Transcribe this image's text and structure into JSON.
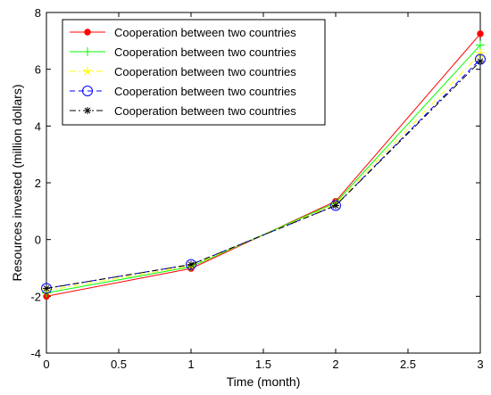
{
  "chart_data": {
    "type": "line",
    "title": "",
    "xlabel": "Time (month)",
    "ylabel": "Resources invested (million dollars)",
    "xlim": [
      0,
      3
    ],
    "ylim": [
      -4,
      8
    ],
    "xticks": [
      0,
      0.5,
      1,
      1.5,
      2,
      2.5,
      3
    ],
    "xtick_labels": [
      "0",
      "0.5",
      "1",
      "1.5",
      "2",
      "2.5",
      "3"
    ],
    "yticks": [
      -4,
      -2,
      0,
      2,
      4,
      6,
      8
    ],
    "ytick_labels": [
      "-4",
      "-2",
      "0",
      "2",
      "4",
      "6",
      "8"
    ],
    "grid": false,
    "legend_position": "top-left",
    "x": [
      0,
      1,
      2,
      3
    ],
    "series": [
      {
        "name": "Cooperation between two countries",
        "values": [
          -2.0,
          -1.02,
          1.35,
          7.25
        ],
        "color": "#ff0000",
        "dash": "solid",
        "marker": "dot"
      },
      {
        "name": "Cooperation between two countries",
        "values": [
          -1.88,
          -0.96,
          1.3,
          6.85
        ],
        "color": "#00ff00",
        "dash": "solid",
        "marker": "plus"
      },
      {
        "name": "Cooperation between two countries",
        "values": [
          -1.8,
          -0.92,
          1.25,
          6.55
        ],
        "color": "#ffff00",
        "dash": "dashdot",
        "marker": "star"
      },
      {
        "name": "Cooperation between two countries",
        "values": [
          -1.72,
          -0.88,
          1.2,
          6.35
        ],
        "color": "#0000ff",
        "dash": "dashed",
        "marker": "circle"
      },
      {
        "name": "Cooperation between two countries",
        "values": [
          -1.72,
          -0.88,
          1.2,
          6.28
        ],
        "color": "#000000",
        "dash": "dashdot",
        "marker": "asterisk"
      }
    ]
  }
}
